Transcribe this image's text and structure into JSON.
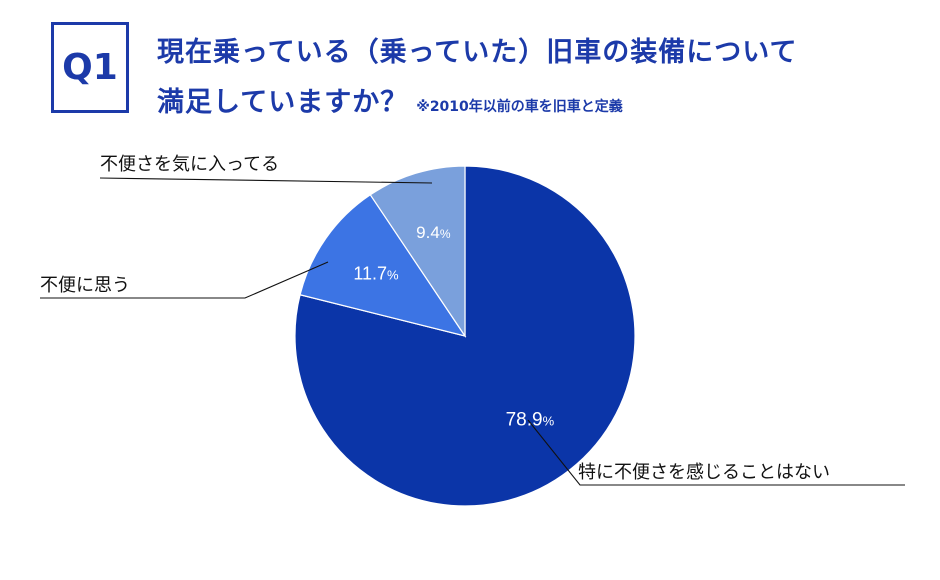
{
  "header": {
    "badge": "Q1",
    "title_line1": "現在乗っている（乗っていた）旧車の装備について",
    "title_line2": "満足していますか？",
    "note": "※2010年以前の車を旧車と定義"
  },
  "colors": {
    "brand": "#1c3aa9",
    "slice_main": "#0b35a8",
    "slice_mid": "#3c74e4",
    "slice_light": "#7aa0dc"
  },
  "chart_data": {
    "type": "pie",
    "title": "現在乗っている（乗っていた）旧車の装備について満足していますか？",
    "start": "12 o'clock, clockwise",
    "slices": [
      {
        "label": "特に不便さを感じることはない",
        "value": 78.9,
        "display": "78.9",
        "unit": "%",
        "color": "#0b35a8"
      },
      {
        "label": "不便に思う",
        "value": 11.7,
        "display": "11.7",
        "unit": "%",
        "color": "#3c74e4"
      },
      {
        "label": "不便さを気に入ってる",
        "value": 9.4,
        "display": "9.4",
        "unit": "%",
        "color": "#7aa0dc"
      }
    ]
  }
}
